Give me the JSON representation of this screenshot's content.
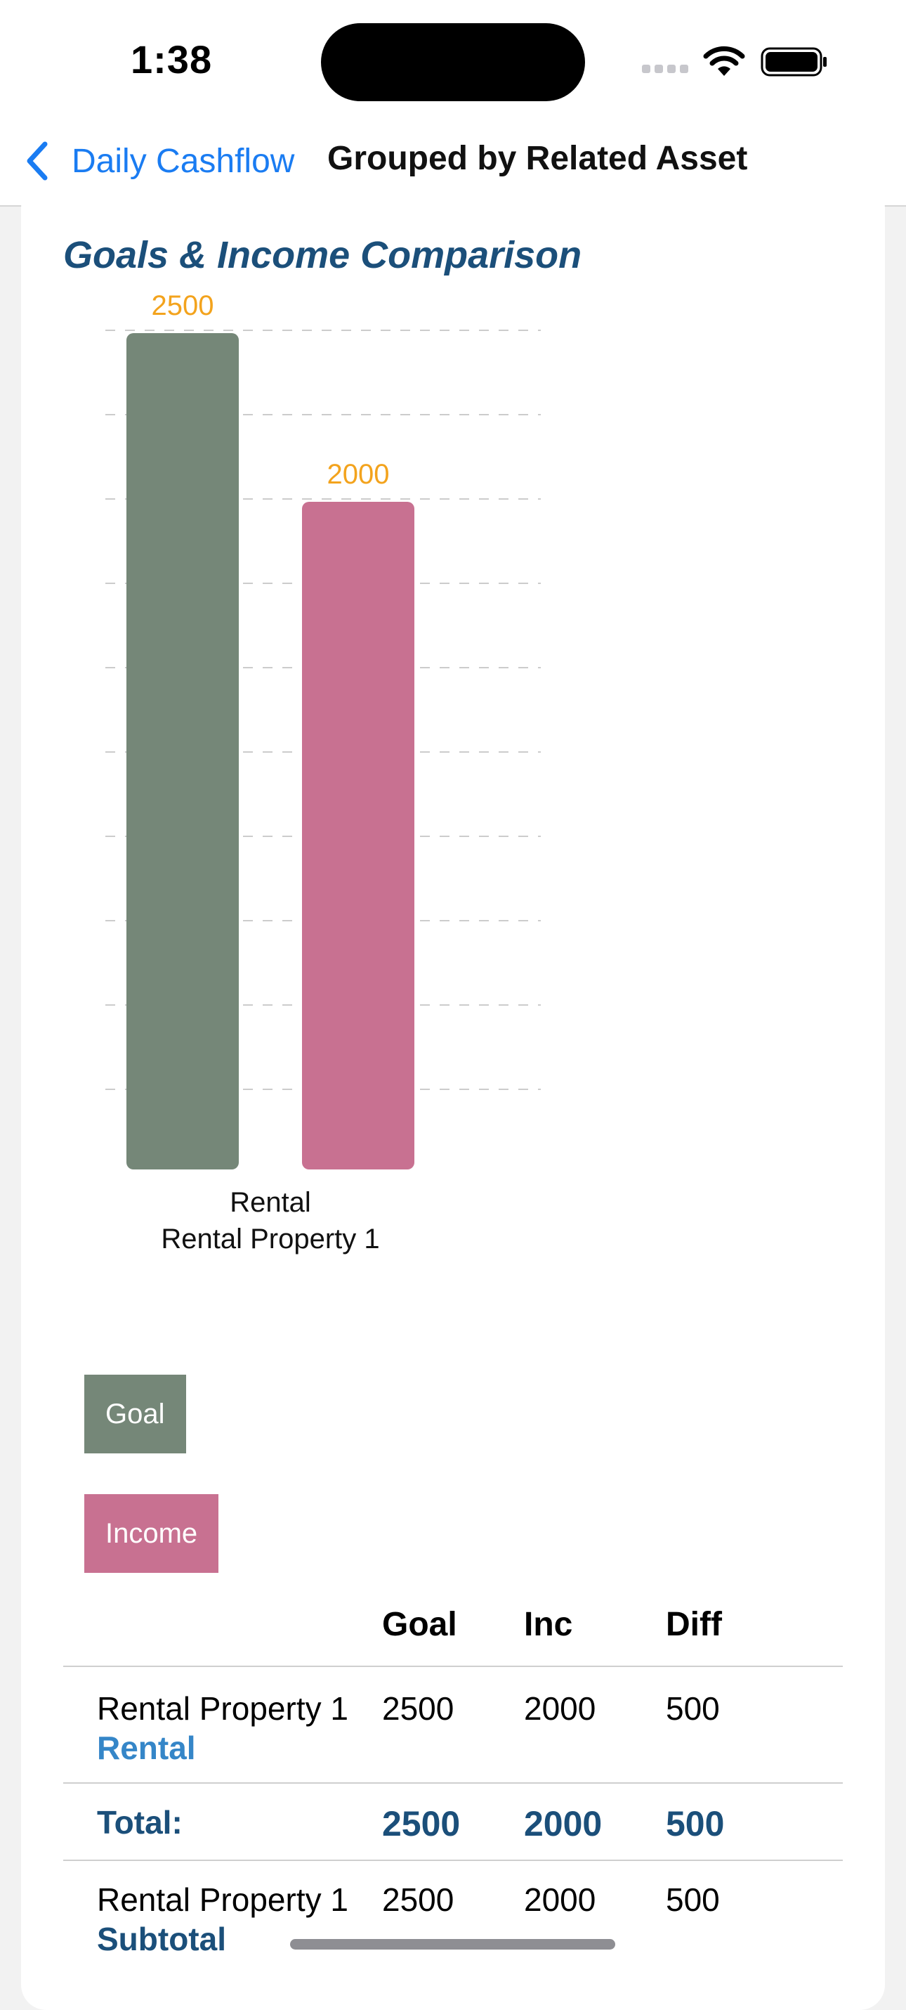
{
  "status_bar": {
    "time": "1:38"
  },
  "nav": {
    "back_label": "Daily Cashflow",
    "title": "Grouped by Related Asset"
  },
  "colors": {
    "goal": "#758778",
    "income": "#c87191",
    "value_label": "#f3a31d",
    "accent": "#1a7cf2",
    "title": "#1b4f7a"
  },
  "chart_data": {
    "type": "bar",
    "title": "Goals & Income Comparison",
    "categories": [
      [
        "Rental",
        "Rental Property 1"
      ]
    ],
    "series": [
      {
        "name": "Goal",
        "values": [
          2500
        ]
      },
      {
        "name": "Income",
        "values": [
          2000
        ]
      }
    ],
    "ylim": [
      0,
      2500
    ],
    "grid": true,
    "legend_position": "bottom-left"
  },
  "table": {
    "headers": [
      "",
      "Goal",
      "Inc",
      "Diff"
    ],
    "rows": [
      {
        "name": "Rental Property 1",
        "sub": "Rental",
        "goal": "2500",
        "inc": "2000",
        "diff": "500"
      }
    ],
    "total": {
      "label": "Total:",
      "goal": "2500",
      "inc": "2000",
      "diff": "500"
    },
    "subtotal": {
      "name": "Rental Property 1",
      "sub": "Subtotal",
      "goal": "2500",
      "inc": "2000",
      "diff": "500"
    }
  }
}
